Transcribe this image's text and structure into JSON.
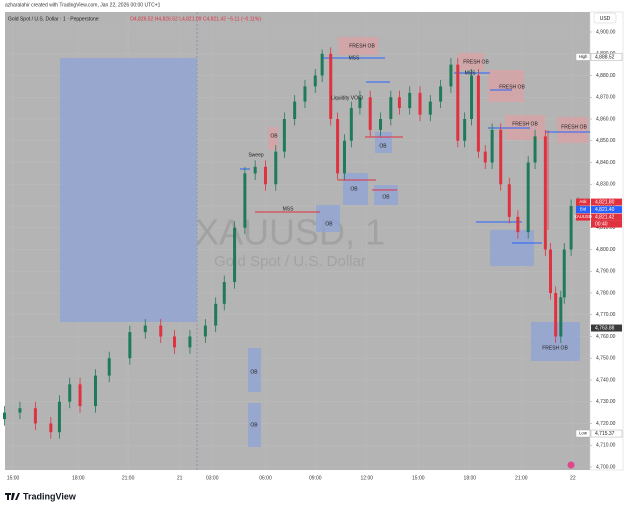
{
  "header": {
    "byline": "azharalahir created with TradingView.com, Jan 22, 2026 00:00 UTC+1",
    "symbol": "Gold Spot / U.S. Dollar · 1 · Pepperstone",
    "ohlc": "O4,826.52 H4,826.52 L4,821.09 C4,821.42 −5.11 (−0.11%)",
    "currency": "USD"
  },
  "watermark": {
    "title": "XAUUSD, 1",
    "subtitle": "Gold Spot / U.S. Dollar"
  },
  "annotations": [
    "FRESH OB",
    "MSS",
    "FRESH OB",
    "MSS",
    "FRESH OB",
    "FRESH OB",
    "FRESH OB",
    "Liquidity VOID",
    "OB",
    "Sweep",
    "OB",
    "OB",
    "OB",
    "MSS",
    "OB",
    "FRESH OB",
    "OB",
    "OB"
  ],
  "footer": {
    "brand": "TradingView"
  },
  "chart_data": {
    "type": "candlestick",
    "up_color": "#1f7a5a",
    "down_color": "#e0313f",
    "x": [
      -0.5,
      0.4,
      1.3,
      2.2,
      2.7,
      3.3,
      3.9,
      4.8,
      5.6,
      6.8,
      7.7,
      8.6,
      9.4,
      10.3,
      11.2,
      11.8,
      12.3,
      12.9,
      13.5,
      14.1,
      14.7,
      15.3,
      15.8,
      16.4,
      17.0,
      17.6,
      18.0,
      18.5,
      18.9,
      19.3,
      19.7,
      20.2,
      20.8,
      21.4,
      22.0,
      22.5,
      23.1,
      23.7,
      24.3,
      24.9,
      25.5,
      25.9,
      26.3,
      26.7,
      27.1,
      27.5,
      27.9,
      28.4,
      28.9,
      29.4,
      30.0,
      30.4,
      31.0,
      31.3,
      31.6,
      31.9,
      32.1,
      32.5,
      32.9
    ],
    "open": [
      4722,
      4725,
      4727,
      4720,
      4716,
      4730,
      4738,
      4728,
      4742,
      4750,
      4762,
      4765,
      4760,
      4755,
      4760,
      4765,
      4775,
      4785,
      4810,
      4835,
      4838,
      4830,
      4845,
      4860,
      4868,
      4875,
      4880,
      4890,
      4860,
      4835,
      4850,
      4865,
      4870,
      4855,
      4860,
      4870,
      4865,
      4872,
      4862,
      4868,
      4875,
      4885,
      4850,
      4860,
      4880,
      4845,
      4840,
      4855,
      4830,
      4815,
      4808,
      4840,
      4852,
      4800,
      4780,
      4760,
      4778,
      4800,
      4820
    ],
    "high": [
      4728,
      4730,
      4730,
      4723,
      4733,
      4741,
      4741,
      4745,
      4753,
      4765,
      4768,
      4768,
      4763,
      4763,
      4768,
      4778,
      4788,
      4813,
      4838,
      4841,
      4841,
      4848,
      4863,
      4871,
      4878,
      4883,
      4892,
      4893,
      4863,
      4853,
      4868,
      4873,
      4873,
      4863,
      4873,
      4873,
      4875,
      4875,
      4871,
      4878,
      4888,
      4888,
      4863,
      4883,
      4883,
      4848,
      4858,
      4858,
      4833,
      4818,
      4843,
      4855,
      4855,
      4803,
      4783,
      4781,
      4803,
      4823,
      4824
    ],
    "low": [
      4719,
      4722,
      4717,
      4713,
      4713,
      4727,
      4725,
      4725,
      4739,
      4747,
      4759,
      4757,
      4752,
      4752,
      4757,
      4762,
      4772,
      4782,
      4807,
      4832,
      4827,
      4827,
      4842,
      4857,
      4865,
      4872,
      4877,
      4857,
      4832,
      4832,
      4847,
      4862,
      4852,
      4852,
      4857,
      4862,
      4862,
      4859,
      4859,
      4865,
      4872,
      4847,
      4847,
      4857,
      4842,
      4837,
      4837,
      4827,
      4812,
      4805,
      4805,
      4837,
      4797,
      4777,
      4757,
      4757,
      4775,
      4797,
      4817
    ],
    "close": [
      4725,
      4727,
      4720,
      4716,
      4730,
      4738,
      4728,
      4742,
      4750,
      4762,
      4765,
      4760,
      4755,
      4760,
      4765,
      4775,
      4785,
      4810,
      4835,
      4838,
      4830,
      4845,
      4860,
      4868,
      4875,
      4880,
      4890,
      4860,
      4835,
      4850,
      4865,
      4870,
      4855,
      4860,
      4870,
      4865,
      4872,
      4862,
      4868,
      4875,
      4885,
      4850,
      4860,
      4880,
      4845,
      4840,
      4855,
      4830,
      4815,
      4808,
      4840,
      4852,
      4800,
      4780,
      4760,
      4778,
      4800,
      4820,
      4821
    ],
    "xlim": [
      -0.47,
      33.6
    ],
    "xticks": [
      {
        "value": 0,
        "label": "15:00"
      },
      {
        "value": 3.8,
        "label": "18:00"
      },
      {
        "value": 6.7,
        "label": "21:00"
      },
      {
        "value": 9.7,
        "label": "21"
      },
      {
        "value": 11.6,
        "label": "03:00"
      },
      {
        "value": 14.7,
        "label": "06:00"
      },
      {
        "value": 17.6,
        "label": "09:00"
      },
      {
        "value": 20.6,
        "label": "12:00"
      },
      {
        "value": 23.6,
        "label": "15:00"
      },
      {
        "value": 26.6,
        "label": "18:00"
      },
      {
        "value": 29.6,
        "label": "21:00"
      },
      {
        "value": 32.6,
        "label": "22"
      }
    ],
    "ylim": [
      4698.6,
      4909.2
    ],
    "yticks": [
      {
        "value": 4700,
        "label": "4,700.00"
      },
      {
        "value": 4710,
        "label": "4,710.00"
      },
      {
        "value": 4720,
        "label": "4,720.00"
      },
      {
        "value": 4730,
        "label": "4,730.00"
      },
      {
        "value": 4740,
        "label": "4,740.00"
      },
      {
        "value": 4750,
        "label": "4,750.00"
      },
      {
        "value": 4760,
        "label": "4,760.00"
      },
      {
        "value": 4770,
        "label": "4,770.00"
      },
      {
        "value": 4780,
        "label": "4,780.00"
      },
      {
        "value": 4790,
        "label": "4,790.00"
      },
      {
        "value": 4800,
        "label": "4,800.00"
      },
      {
        "value": 4810,
        "label": "4,810.00"
      },
      {
        "value": 4820,
        "label": "4,820.00"
      },
      {
        "value": 4830,
        "label": "4,830.00"
      },
      {
        "value": 4840,
        "label": "4,840.00"
      },
      {
        "value": 4850,
        "label": "4,850.00"
      },
      {
        "value": 4860,
        "label": "4,860.00"
      },
      {
        "value": 4870,
        "label": "4,870.00"
      },
      {
        "value": 4880,
        "label": "4,880.00"
      },
      {
        "value": 4890,
        "label": "4,890.00"
      },
      {
        "value": 4900,
        "label": "4,900.00"
      }
    ],
    "grid": true,
    "price_tags": [
      {
        "name": "High",
        "value": 4888.52,
        "label": "4,888.52",
        "color": "#ffffff"
      },
      {
        "name": "Ask",
        "value": 4821.8,
        "label": "4,821.80",
        "color": "#e0313f"
      },
      {
        "name": "Bid",
        "value": 4821.4,
        "label": "4,821.40",
        "color": "#2962ff"
      },
      {
        "name": "XAUUSD",
        "value": 4821.42,
        "label": "4,821.42",
        "color": "#e0313f",
        "sub": "00:40"
      },
      {
        "value": 4763.88,
        "label": "4,763.88",
        "color": "#3a3a3a"
      },
      {
        "name": "Low",
        "value": 4715.37,
        "label": "4,715.37",
        "color": "#ffffff"
      }
    ]
  }
}
